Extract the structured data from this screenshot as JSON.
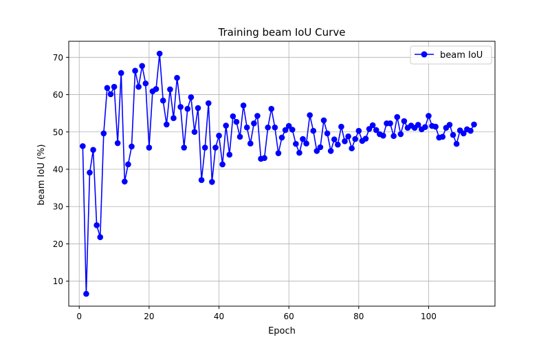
{
  "chart_data": {
    "type": "line",
    "title": "Training beam IoU Curve",
    "xlabel": "Epoch",
    "ylabel": "beam IoU (%)",
    "xlim": [
      -3,
      119
    ],
    "ylim": [
      3.3,
      74.3
    ],
    "xticks": [
      0,
      20,
      40,
      60,
      80,
      100
    ],
    "yticks": [
      10,
      20,
      30,
      40,
      50,
      60,
      70
    ],
    "grid": true,
    "legend_position": "top-right",
    "series": [
      {
        "name": "beam IoU",
        "color": "#0000ff",
        "marker": "circle",
        "x": [
          1,
          2,
          3,
          4,
          5,
          6,
          7,
          8,
          9,
          10,
          11,
          12,
          13,
          14,
          15,
          16,
          17,
          18,
          19,
          20,
          21,
          22,
          23,
          24,
          25,
          26,
          27,
          28,
          29,
          30,
          31,
          32,
          33,
          34,
          35,
          36,
          37,
          38,
          39,
          40,
          41,
          42,
          43,
          44,
          45,
          46,
          47,
          48,
          49,
          50,
          51,
          52,
          53,
          54,
          55,
          56,
          57,
          58,
          59,
          60,
          61,
          62,
          63,
          64,
          65,
          66,
          67,
          68,
          69,
          70,
          71,
          72,
          73,
          74,
          75,
          76,
          77,
          78,
          79,
          80,
          81,
          82,
          83,
          84,
          85,
          86,
          87,
          88,
          89,
          90,
          91,
          92,
          93,
          94,
          95,
          96,
          97,
          98,
          99,
          100,
          101,
          102,
          103,
          104,
          105,
          106,
          107,
          108,
          109,
          110,
          111,
          112,
          113
        ],
        "values": [
          46.2,
          6.6,
          39.1,
          45.2,
          25.0,
          21.8,
          49.6,
          61.8,
          60.1,
          62.1,
          47.0,
          65.8,
          36.7,
          41.3,
          46.1,
          66.4,
          62.1,
          67.7,
          63.0,
          45.8,
          60.9,
          61.5,
          71.0,
          58.4,
          52.0,
          61.4,
          53.7,
          64.5,
          56.7,
          45.8,
          56.2,
          59.3,
          50.0,
          56.4,
          37.1,
          45.8,
          57.7,
          36.6,
          45.8,
          49.0,
          41.3,
          51.7,
          43.9,
          54.2,
          52.7,
          48.7,
          57.1,
          51.2,
          46.9,
          52.3,
          54.3,
          42.8,
          43.0,
          51.2,
          56.2,
          51.2,
          44.3,
          48.5,
          50.5,
          51.6,
          50.6,
          46.8,
          44.4,
          48.1,
          46.9,
          54.5,
          50.3,
          44.9,
          45.9,
          53.1,
          49.6,
          44.9,
          48.0,
          46.6,
          51.4,
          47.5,
          48.8,
          45.6,
          48.1,
          50.3,
          47.6,
          48.2,
          50.8,
          51.8,
          50.5,
          49.4,
          49.0,
          52.3,
          52.3,
          48.9,
          54.0,
          49.4,
          52.9,
          51.1,
          51.7,
          51.1,
          51.9,
          50.7,
          51.3,
          54.3,
          51.6,
          51.4,
          48.5,
          48.7,
          51.1,
          51.9,
          49.2,
          46.8,
          50.4,
          49.6,
          50.7,
          50.3,
          52.0
        ]
      }
    ]
  }
}
